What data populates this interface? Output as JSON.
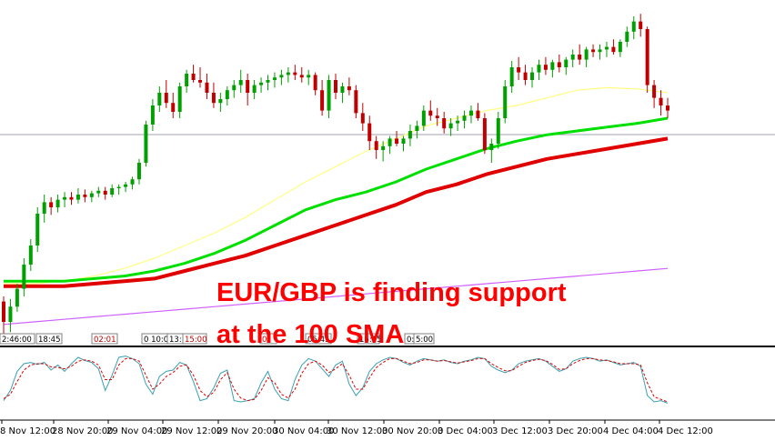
{
  "chart_data": {
    "type": "candlestick",
    "annotation_lines": [
      "EUR/GBP is finding support",
      "at the 100 SMA"
    ],
    "x_tick_labels": [
      "8 Nov 12:00",
      "28 Nov 20:00",
      "29 Nov 04:00",
      "29 Nov 12:00",
      "29 Nov 20:00",
      "30 Nov 04:00",
      "30 Nov 12:00",
      "30 Nov 20:00",
      "3 Dec 04:00",
      "3 Dec 12:00",
      "3 Dec 20:00",
      "4 Dec 04:00",
      "4 Dec 12:00"
    ],
    "time_tags": [
      {
        "text": "2:46:00",
        "color": "#000000"
      },
      {
        "text": "18:45",
        "color": "#000000"
      },
      {
        "text": "02:01",
        "color": "#c00000"
      },
      {
        "text": "0 10:00",
        "color": "#000000"
      },
      {
        "text": "13:",
        "color": "#000000"
      },
      {
        "text": "15:00",
        "color": "#c00000"
      },
      {
        "text": "0:",
        "color": "#c00000"
      },
      {
        "text": "05:45",
        "color": "#000000"
      },
      {
        "text": "16:15",
        "color": "#000000"
      },
      {
        "text": "0:",
        "color": "#000000"
      },
      {
        "text": "5:00",
        "color": "#000000"
      }
    ],
    "candles": [
      [
        0.8866,
        0.887,
        0.884,
        0.885
      ],
      [
        0.885,
        0.8868,
        0.8842,
        0.8862
      ],
      [
        0.8862,
        0.888,
        0.8858,
        0.8876
      ],
      [
        0.8876,
        0.89,
        0.887,
        0.8895
      ],
      [
        0.8895,
        0.8915,
        0.889,
        0.891
      ],
      [
        0.891,
        0.894,
        0.8905,
        0.8935
      ],
      [
        0.8935,
        0.895,
        0.8928,
        0.8944
      ],
      [
        0.8944,
        0.8948,
        0.8934,
        0.894
      ],
      [
        0.894,
        0.895,
        0.8936,
        0.8946
      ],
      [
        0.8946,
        0.8952,
        0.894,
        0.8948
      ],
      [
        0.8948,
        0.8952,
        0.8942,
        0.8946
      ],
      [
        0.8946,
        0.8955,
        0.8943,
        0.895
      ],
      [
        0.895,
        0.8954,
        0.8944,
        0.8948
      ],
      [
        0.8948,
        0.8953,
        0.8944,
        0.8951
      ],
      [
        0.8951,
        0.8956,
        0.8948,
        0.8953
      ],
      [
        0.8953,
        0.8956,
        0.8946,
        0.895
      ],
      [
        0.895,
        0.8958,
        0.8948,
        0.8955
      ],
      [
        0.8955,
        0.8958,
        0.895,
        0.8956
      ],
      [
        0.8956,
        0.896,
        0.8952,
        0.8958
      ],
      [
        0.8958,
        0.8964,
        0.8954,
        0.8962
      ],
      [
        0.8962,
        0.8978,
        0.8958,
        0.8975
      ],
      [
        0.8975,
        0.9008,
        0.8972,
        0.9005
      ],
      [
        0.9005,
        0.9025,
        0.9,
        0.902
      ],
      [
        0.902,
        0.9035,
        0.9015,
        0.903
      ],
      [
        0.903,
        0.904,
        0.9018,
        0.9022
      ],
      [
        0.9022,
        0.903,
        0.901,
        0.9015
      ],
      [
        0.9015,
        0.9038,
        0.901,
        0.9035
      ],
      [
        0.9035,
        0.9048,
        0.903,
        0.9045
      ],
      [
        0.9045,
        0.9052,
        0.9038,
        0.904
      ],
      [
        0.904,
        0.905,
        0.9034,
        0.9038
      ],
      [
        0.9038,
        0.9045,
        0.9025,
        0.903
      ],
      [
        0.903,
        0.9038,
        0.9018,
        0.9022
      ],
      [
        0.9022,
        0.903,
        0.9015,
        0.9025
      ],
      [
        0.9025,
        0.9035,
        0.902,
        0.9032
      ],
      [
        0.9032,
        0.904,
        0.9026,
        0.9036
      ],
      [
        0.9036,
        0.9048,
        0.903,
        0.904
      ],
      [
        0.904,
        0.9045,
        0.902,
        0.903
      ],
      [
        0.903,
        0.904,
        0.9025,
        0.9036
      ],
      [
        0.9036,
        0.9042,
        0.903,
        0.9038
      ],
      [
        0.9038,
        0.9044,
        0.9032,
        0.904
      ],
      [
        0.904,
        0.9046,
        0.9034,
        0.9042
      ],
      [
        0.9042,
        0.9048,
        0.9036,
        0.9044
      ],
      [
        0.9044,
        0.905,
        0.9038,
        0.9046
      ],
      [
        0.9046,
        0.9052,
        0.904,
        0.9044
      ],
      [
        0.9044,
        0.905,
        0.9038,
        0.9042
      ],
      [
        0.9042,
        0.9048,
        0.9036,
        0.9044
      ],
      [
        0.9044,
        0.9046,
        0.9028,
        0.9032
      ],
      [
        0.9032,
        0.904,
        0.9012,
        0.9016
      ],
      [
        0.9016,
        0.9044,
        0.901,
        0.904
      ],
      [
        0.904,
        0.9045,
        0.9025,
        0.903
      ],
      [
        0.903,
        0.9038,
        0.9022,
        0.9035
      ],
      [
        0.9035,
        0.9042,
        0.9028,
        0.9032
      ],
      [
        0.9032,
        0.9036,
        0.901,
        0.9014
      ],
      [
        0.9014,
        0.9022,
        0.9,
        0.9006
      ],
      [
        0.9006,
        0.9012,
        0.8985,
        0.8992
      ],
      [
        0.8992,
        0.8996,
        0.8978,
        0.8985
      ],
      [
        0.8985,
        0.8992,
        0.8976,
        0.8988
      ],
      [
        0.8988,
        0.8996,
        0.8982,
        0.8994
      ],
      [
        0.8994,
        0.9,
        0.8988,
        0.899
      ],
      [
        0.899,
        0.8996,
        0.8984,
        0.8994
      ],
      [
        0.8994,
        0.9005,
        0.8988,
        0.9
      ],
      [
        0.9,
        0.9008,
        0.8994,
        0.9004
      ],
      [
        0.9004,
        0.902,
        0.9,
        0.9016
      ],
      [
        0.9016,
        0.9024,
        0.9008,
        0.9012
      ],
      [
        0.9012,
        0.9018,
        0.9004,
        0.901
      ],
      [
        0.901,
        0.9015,
        0.8998,
        0.9002
      ],
      [
        0.9002,
        0.901,
        0.8996,
        0.9006
      ],
      [
        0.9006,
        0.9012,
        0.9,
        0.9008
      ],
      [
        0.9008,
        0.9016,
        0.9002,
        0.9012
      ],
      [
        0.9012,
        0.902,
        0.9006,
        0.9016
      ],
      [
        0.9016,
        0.9022,
        0.9008,
        0.901
      ],
      [
        0.901,
        0.9014,
        0.8982,
        0.8985
      ],
      [
        0.8985,
        0.8994,
        0.8975,
        0.899
      ],
      [
        0.899,
        0.9015,
        0.8986,
        0.901
      ],
      [
        0.901,
        0.904,
        0.9006,
        0.9035
      ],
      [
        0.9035,
        0.9055,
        0.903,
        0.905
      ],
      [
        0.905,
        0.9058,
        0.904,
        0.9046
      ],
      [
        0.9046,
        0.9052,
        0.9036,
        0.904
      ],
      [
        0.904,
        0.905,
        0.9034,
        0.9046
      ],
      [
        0.9046,
        0.9056,
        0.904,
        0.9052
      ],
      [
        0.9052,
        0.9058,
        0.9044,
        0.9048
      ],
      [
        0.9048,
        0.9056,
        0.9042,
        0.9054
      ],
      [
        0.9054,
        0.906,
        0.9046,
        0.905
      ],
      [
        0.905,
        0.9058,
        0.9044,
        0.9056
      ],
      [
        0.9056,
        0.9064,
        0.905,
        0.906
      ],
      [
        0.906,
        0.9068,
        0.9052,
        0.9056
      ],
      [
        0.9056,
        0.9066,
        0.905,
        0.9064
      ],
      [
        0.9064,
        0.9068,
        0.9058,
        0.9062
      ],
      [
        0.9062,
        0.9068,
        0.9056,
        0.9064
      ],
      [
        0.9064,
        0.907,
        0.9058,
        0.9066
      ],
      [
        0.9066,
        0.9072,
        0.906,
        0.9062
      ],
      [
        0.9062,
        0.9072,
        0.9058,
        0.907
      ],
      [
        0.907,
        0.9082,
        0.9066,
        0.9078
      ],
      [
        0.9078,
        0.909,
        0.9072,
        0.9086
      ],
      [
        0.9086,
        0.9092,
        0.9074,
        0.908
      ],
      [
        0.908,
        0.9082,
        0.903,
        0.9036
      ],
      [
        0.9036,
        0.904,
        0.9018,
        0.9026
      ],
      [
        0.9026,
        0.9032,
        0.9012,
        0.902
      ],
      [
        0.902,
        0.9026,
        0.901,
        0.9016
      ]
    ],
    "sma_100": [
      0.8882,
      0.8882,
      0.8882,
      0.8884,
      0.8886,
      0.889,
      0.8896,
      0.8904,
      0.8914,
      0.8926,
      0.8938,
      0.8946,
      0.8952,
      0.896,
      0.897,
      0.8978,
      0.8986,
      0.8992,
      0.8997,
      0.9,
      0.9003,
      0.9006,
      0.901
    ],
    "sma_200": [
      0.8878,
      0.8878,
      0.8878,
      0.888,
      0.8882,
      0.8884,
      0.889,
      0.8896,
      0.8902,
      0.891,
      0.8918,
      0.8926,
      0.8934,
      0.8942,
      0.8952,
      0.8958,
      0.8966,
      0.8972,
      0.8978,
      0.8982,
      0.8986,
      0.899,
      0.8994
    ],
    "sma_50": [
      0.888,
      0.888,
      0.8882,
      0.8886,
      0.8892,
      0.89,
      0.891,
      0.892,
      0.8932,
      0.8946,
      0.896,
      0.8972,
      0.8984,
      0.8994,
      0.9004,
      0.901,
      0.9016,
      0.902,
      0.9026,
      0.9032,
      0.9034,
      0.9033,
      0.903
    ],
    "sma_slow": [
      0.8848,
      0.885,
      0.8852,
      0.8854,
      0.8856,
      0.8858,
      0.886,
      0.8862,
      0.8864,
      0.8866,
      0.8868,
      0.887,
      0.8872,
      0.8874,
      0.8876,
      0.8878,
      0.888,
      0.8882,
      0.8884,
      0.8886,
      0.8888,
      0.889,
      0.8892
    ],
    "stoch_k": [
      22,
      38,
      68,
      80,
      82,
      79,
      82,
      70,
      78,
      68,
      80,
      90,
      85,
      82,
      72,
      38,
      62,
      90,
      92,
      88,
      80,
      48,
      32,
      60,
      68,
      70,
      82,
      78,
      52,
      22,
      25,
      42,
      65,
      70,
      22,
      20,
      22,
      25,
      50,
      68,
      40,
      25,
      22,
      55,
      78,
      88,
      84,
      72,
      60,
      78,
      84,
      48,
      30,
      42,
      68,
      80,
      86,
      90,
      88,
      82,
      78,
      84,
      88,
      86,
      84,
      86,
      82,
      80,
      84,
      86,
      90,
      88,
      76,
      70,
      66,
      70,
      80,
      84,
      86,
      88,
      84,
      76,
      68,
      72,
      84,
      88,
      90,
      88,
      84,
      86,
      82,
      78,
      80,
      82,
      76,
      30,
      20,
      22,
      18
    ],
    "stoch_d": [
      25,
      32,
      52,
      70,
      78,
      80,
      80,
      75,
      74,
      72,
      76,
      84,
      86,
      84,
      78,
      55,
      55,
      78,
      88,
      88,
      84,
      62,
      40,
      48,
      60,
      66,
      76,
      78,
      62,
      38,
      28,
      35,
      55,
      66,
      40,
      26,
      22,
      24,
      38,
      58,
      50,
      32,
      26,
      40,
      65,
      80,
      84,
      78,
      66,
      72,
      80,
      62,
      40,
      40,
      58,
      74,
      82,
      88,
      88,
      84,
      80,
      82,
      86,
      86,
      84,
      85,
      83,
      81,
      83,
      85,
      88,
      88,
      80,
      74,
      69,
      69,
      76,
      82,
      85,
      87,
      85,
      79,
      71,
      72,
      80,
      85,
      88,
      88,
      86,
      85,
      83,
      80,
      80,
      80,
      78,
      50,
      28,
      24,
      20
    ],
    "price_range": [
      0.884,
      0.91
    ],
    "stoch_range": [
      0,
      100
    ]
  },
  "colors": {
    "bull": "#00a000",
    "bear": "#c00000",
    "sma_100": "#00e000",
    "sma_200": "#e00000",
    "sma_50": "#ffff80",
    "sma_slow": "#d060ff",
    "stoch_k": "#3aa0b0",
    "stoch_d": "#e00000",
    "annotation": "#ff0000"
  }
}
